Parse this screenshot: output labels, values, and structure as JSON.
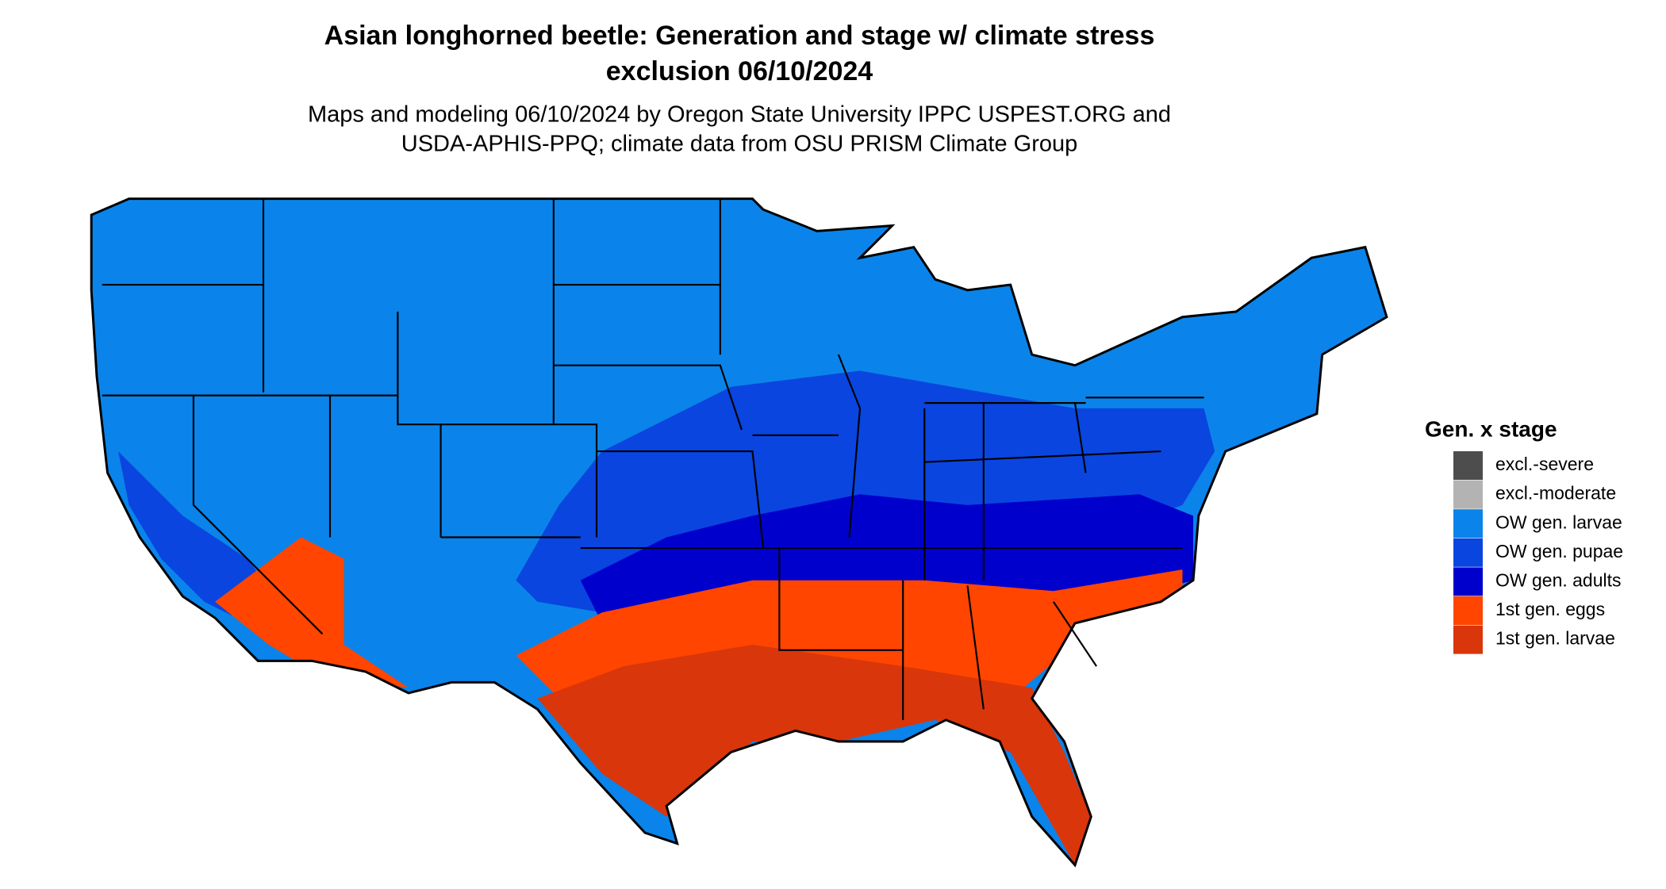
{
  "header": {
    "title_lines": [
      "Asian longhorned beetle: Generation and stage w/ climate stress",
      "exclusion 06/10/2024"
    ],
    "subtitle_lines": [
      "Maps and modeling 06/10/2024 by Oregon State University IPPC USPEST.ORG and",
      "USDA-APHIS-PPQ; climate data from OSU PRISM Climate Group"
    ]
  },
  "legend": {
    "title": "Gen. x stage",
    "items": [
      {
        "label": "excl.-severe",
        "color": "#4d4d4d"
      },
      {
        "label": "excl.-moderate",
        "color": "#b3b3b3"
      },
      {
        "label": "OW gen. larvae",
        "color": "#0a84ea"
      },
      {
        "label": "OW gen. pupae",
        "color": "#0a45e0"
      },
      {
        "label": "OW gen. adults",
        "color": "#0000cd"
      },
      {
        "label": "1st gen. eggs",
        "color": "#ff4500"
      },
      {
        "label": "1st gen. larvae",
        "color": "#d9360b"
      }
    ]
  }
}
